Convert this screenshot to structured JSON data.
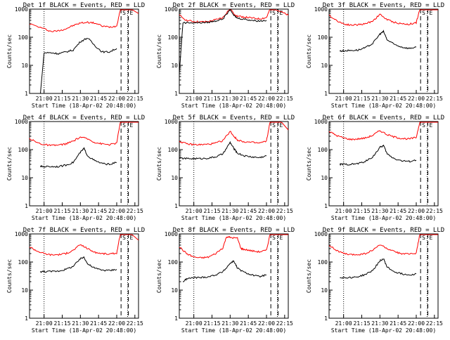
{
  "chart_data": [
    {
      "type": "line",
      "title": "Det 1f BLACK = Events, RED = LLD",
      "xlabel": "Start Time (18-Apr-02 20:48:00)",
      "ylabel": "Counts/sec",
      "yscale": "log",
      "ylim": [
        1,
        1000
      ],
      "x_ticks": [
        "21:00",
        "21:15",
        "21:30",
        "21:45",
        "22:00",
        "22:15"
      ],
      "y_ticks": [
        "1",
        "10",
        "100",
        "1000"
      ],
      "markers": [
        "S",
        "E"
      ],
      "series": [
        {
          "color": "#ff0000",
          "x": [
            20.8,
            21.0,
            21.1,
            21.2,
            21.3,
            21.4,
            21.5,
            21.6,
            21.7,
            21.8,
            21.9,
            22.0,
            22.05,
            22.1,
            22.2,
            22.3
          ],
          "y": [
            300,
            200,
            160,
            170,
            200,
            260,
            320,
            340,
            320,
            250,
            230,
            250,
            1000,
            1000,
            1000,
            700
          ]
        },
        {
          "color": "#000000",
          "x": [
            20.95,
            21.0,
            21.1,
            21.2,
            21.3,
            21.4,
            21.5,
            21.6,
            21.7,
            21.8,
            21.9,
            22.0
          ],
          "y": [
            1,
            28,
            28,
            26,
            30,
            35,
            70,
            95,
            50,
            30,
            30,
            40
          ]
        }
      ]
    },
    {
      "type": "line",
      "title": "Det 2f BLACK = Events, RED = LLD",
      "xlabel": "Start Time (18-Apr-02 20:48:00)",
      "ylabel": "Counts/sec",
      "yscale": "log",
      "ylim": [
        1,
        1000
      ],
      "x_ticks": [
        "21:00",
        "21:15",
        "21:30",
        "21:45",
        "22:00",
        "22:15"
      ],
      "y_ticks": [
        "1",
        "10",
        "100",
        "1000"
      ],
      "markers": [
        "S",
        "E"
      ],
      "series": [
        {
          "color": "#ff0000",
          "x": [
            20.8,
            20.9,
            21.0,
            21.1,
            21.2,
            21.3,
            21.4,
            21.5,
            21.55,
            21.6,
            21.7,
            21.8,
            21.9,
            22.0,
            22.05,
            22.1,
            22.2,
            22.3
          ],
          "y": [
            600,
            400,
            360,
            350,
            360,
            420,
            500,
            1100,
            700,
            560,
            520,
            480,
            450,
            500,
            1000,
            1000,
            800,
            600
          ]
        },
        {
          "color": "#000000",
          "x": [
            20.8,
            20.85,
            21.0,
            21.1,
            21.2,
            21.3,
            21.4,
            21.5,
            21.55,
            21.6,
            21.7,
            21.8,
            21.9,
            22.0
          ],
          "y": [
            5,
            330,
            330,
            330,
            340,
            380,
            450,
            950,
            600,
            480,
            440,
            400,
            380,
            400
          ]
        }
      ]
    },
    {
      "type": "line",
      "title": "Det 3f BLACK = Events, RED = LLD",
      "xlabel": "Start Time (18-Apr-02 20:48:00)",
      "ylabel": "Counts/sec",
      "yscale": "log",
      "ylim": [
        1,
        1000
      ],
      "x_ticks": [
        "21:00",
        "21:15",
        "21:30",
        "21:45",
        "22:00",
        "22:15"
      ],
      "y_ticks": [
        "1",
        "10",
        "100",
        "1000"
      ],
      "markers": [
        "S",
        "E"
      ],
      "series": [
        {
          "color": "#ff0000",
          "x": [
            20.8,
            20.9,
            21.0,
            21.1,
            21.2,
            21.3,
            21.4,
            21.5,
            21.6,
            21.7,
            21.8,
            21.9,
            22.0,
            22.05,
            22.1,
            22.2,
            22.3
          ],
          "y": [
            600,
            400,
            300,
            270,
            280,
            300,
            380,
            650,
            420,
            340,
            300,
            290,
            330,
            1000,
            1000,
            1000,
            1000
          ]
        },
        {
          "color": "#000000",
          "x": [
            20.95,
            21.0,
            21.1,
            21.2,
            21.3,
            21.4,
            21.5,
            21.55,
            21.6,
            21.7,
            21.8,
            21.9,
            22.0
          ],
          "y": [
            32,
            33,
            34,
            35,
            42,
            60,
            130,
            160,
            80,
            55,
            45,
            40,
            45
          ]
        }
      ]
    },
    {
      "type": "line",
      "title": "Det 4f BLACK = Events, RED = LLD",
      "xlabel": "Start Time (18-Apr-02 20:48:00)",
      "ylabel": "Counts/sec",
      "yscale": "log",
      "ylim": [
        1,
        1000
      ],
      "x_ticks": [
        "21:00",
        "21:15",
        "21:30",
        "21:45",
        "22:00",
        "22:15"
      ],
      "y_ticks": [
        "1",
        "10",
        "100",
        "1000"
      ],
      "markers": [
        "S",
        "E"
      ],
      "series": [
        {
          "color": "#ff0000",
          "x": [
            20.8,
            20.9,
            21.0,
            21.1,
            21.2,
            21.3,
            21.4,
            21.5,
            21.6,
            21.7,
            21.8,
            21.9,
            22.0,
            22.05,
            22.1,
            22.2,
            22.3
          ],
          "y": [
            250,
            180,
            150,
            140,
            145,
            160,
            200,
            280,
            240,
            180,
            160,
            150,
            170,
            1000,
            1000,
            1000,
            1000
          ]
        },
        {
          "color": "#000000",
          "x": [
            20.95,
            21.0,
            21.1,
            21.2,
            21.3,
            21.4,
            21.5,
            21.55,
            21.6,
            21.7,
            21.8,
            21.9,
            22.0
          ],
          "y": [
            25,
            25,
            25,
            25,
            28,
            35,
            80,
            110,
            60,
            40,
            32,
            30,
            35
          ]
        }
      ]
    },
    {
      "type": "line",
      "title": "Det 5f BLACK = Events, RED = LLD",
      "xlabel": "Start Time (18-Apr-02 20:48:00)",
      "ylabel": "Counts/sec",
      "yscale": "log",
      "ylim": [
        1,
        1000
      ],
      "x_ticks": [
        "21:00",
        "21:15",
        "21:30",
        "21:45",
        "22:00",
        "22:15"
      ],
      "y_ticks": [
        "1",
        "10",
        "100",
        "1000"
      ],
      "markers": [
        "S",
        "E"
      ],
      "series": [
        {
          "color": "#ff0000",
          "x": [
            20.8,
            20.9,
            21.0,
            21.1,
            21.2,
            21.3,
            21.4,
            21.5,
            21.55,
            21.6,
            21.7,
            21.8,
            21.9,
            22.0,
            22.05,
            22.1,
            22.2,
            22.3
          ],
          "y": [
            200,
            160,
            150,
            150,
            155,
            170,
            210,
            450,
            300,
            220,
            190,
            180,
            170,
            200,
            1000,
            1000,
            1000,
            500
          ]
        },
        {
          "color": "#000000",
          "x": [
            20.8,
            20.9,
            21.0,
            21.1,
            21.2,
            21.3,
            21.4,
            21.5,
            21.55,
            21.6,
            21.7,
            21.8,
            21.9,
            22.0
          ],
          "y": [
            50,
            48,
            48,
            48,
            50,
            55,
            70,
            180,
            110,
            75,
            60,
            55,
            52,
            60
          ]
        }
      ]
    },
    {
      "type": "line",
      "title": "Det 6f BLACK = Events, RED = LLD",
      "xlabel": "Start Time (18-Apr-02 20:48:00)",
      "ylabel": "Counts/sec",
      "yscale": "log",
      "ylim": [
        1,
        1000
      ],
      "x_ticks": [
        "21:00",
        "21:15",
        "21:30",
        "21:45",
        "22:00",
        "22:15"
      ],
      "y_ticks": [
        "1",
        "10",
        "100",
        "1000"
      ],
      "markers": [
        "S",
        "E"
      ],
      "series": [
        {
          "color": "#ff0000",
          "x": [
            20.8,
            20.9,
            21.0,
            21.1,
            21.2,
            21.3,
            21.4,
            21.5,
            21.6,
            21.7,
            21.8,
            21.9,
            22.0,
            22.05,
            22.1,
            22.2,
            22.3
          ],
          "y": [
            450,
            320,
            260,
            230,
            240,
            260,
            320,
            480,
            340,
            280,
            250,
            240,
            270,
            1000,
            1000,
            1000,
            1000
          ]
        },
        {
          "color": "#000000",
          "x": [
            20.95,
            21.0,
            21.1,
            21.2,
            21.3,
            21.4,
            21.5,
            21.55,
            21.6,
            21.7,
            21.8,
            21.9,
            22.0
          ],
          "y": [
            30,
            30,
            30,
            32,
            38,
            55,
            120,
            140,
            70,
            48,
            40,
            38,
            42
          ]
        }
      ]
    },
    {
      "type": "line",
      "title": "Det 7f BLACK = Events, RED = LLD",
      "xlabel": "Start Time (18-Apr-02 20:48:00)",
      "ylabel": "Counts/sec",
      "yscale": "log",
      "ylim": [
        1,
        1000
      ],
      "x_ticks": [
        "21:00",
        "21:15",
        "21:30",
        "21:45",
        "22:00",
        "22:15"
      ],
      "y_ticks": [
        "1",
        "10",
        "100",
        "1000"
      ],
      "markers": [
        "S",
        "E"
      ],
      "series": [
        {
          "color": "#ff0000",
          "x": [
            20.8,
            20.9,
            21.0,
            21.1,
            21.2,
            21.3,
            21.4,
            21.5,
            21.6,
            21.7,
            21.8,
            21.9,
            22.0,
            22.05,
            22.1,
            22.2,
            22.3
          ],
          "y": [
            350,
            250,
            200,
            180,
            185,
            200,
            260,
            420,
            300,
            220,
            200,
            190,
            210,
            1000,
            1000,
            1000,
            600
          ]
        },
        {
          "color": "#000000",
          "x": [
            20.95,
            21.0,
            21.1,
            21.2,
            21.3,
            21.4,
            21.5,
            21.55,
            21.6,
            21.7,
            21.8,
            21.9,
            22.0
          ],
          "y": [
            45,
            46,
            46,
            48,
            55,
            70,
            130,
            150,
            85,
            60,
            52,
            50,
            55
          ]
        }
      ]
    },
    {
      "type": "line",
      "title": "Det 8f BLACK = Events, RED = LLD",
      "xlabel": "Start Time (18-Apr-02 20:48:00)",
      "ylabel": "Counts/sec",
      "yscale": "log",
      "ylim": [
        1,
        1000
      ],
      "x_ticks": [
        "21:00",
        "21:15",
        "21:30",
        "21:45",
        "22:00",
        "22:15"
      ],
      "y_ticks": [
        "1",
        "10",
        "100",
        "1000"
      ],
      "markers": [
        "S",
        "E"
      ],
      "series": [
        {
          "color": "#ff0000",
          "x": [
            20.8,
            20.9,
            21.0,
            21.1,
            21.2,
            21.3,
            21.4,
            21.45,
            21.5,
            21.6,
            21.65,
            21.7,
            21.8,
            21.9,
            22.0,
            22.05,
            22.1,
            22.2,
            22.3
          ],
          "y": [
            350,
            200,
            150,
            140,
            150,
            200,
            320,
            800,
            750,
            700,
            300,
            280,
            250,
            230,
            260,
            1000,
            1000,
            1000,
            1000
          ]
        },
        {
          "color": "#000000",
          "x": [
            20.85,
            20.9,
            21.0,
            21.1,
            21.2,
            21.3,
            21.4,
            21.5,
            21.55,
            21.6,
            21.7,
            21.8,
            21.9,
            22.0
          ],
          "y": [
            20,
            25,
            28,
            28,
            30,
            35,
            45,
            90,
            110,
            60,
            42,
            35,
            30,
            35
          ]
        }
      ]
    },
    {
      "type": "line",
      "title": "Det 9f BLACK = Events, RED = LLD",
      "xlabel": "Start Time (18-Apr-02 20:48:00)",
      "ylabel": "Counts/sec",
      "yscale": "log",
      "ylim": [
        1,
        1000
      ],
      "x_ticks": [
        "21:00",
        "21:15",
        "21:30",
        "21:45",
        "22:00",
        "22:15"
      ],
      "y_ticks": [
        "1",
        "10",
        "100",
        "1000"
      ],
      "markers": [
        "S",
        "E"
      ],
      "series": [
        {
          "color": "#ff0000",
          "x": [
            20.8,
            20.9,
            21.0,
            21.1,
            21.2,
            21.3,
            21.4,
            21.5,
            21.6,
            21.7,
            21.8,
            21.9,
            22.0,
            22.05,
            22.1,
            22.2,
            22.3
          ],
          "y": [
            400,
            260,
            200,
            180,
            185,
            200,
            260,
            420,
            300,
            230,
            200,
            190,
            210,
            1000,
            1000,
            1000,
            1000
          ]
        },
        {
          "color": "#000000",
          "x": [
            20.95,
            21.0,
            21.1,
            21.2,
            21.3,
            21.4,
            21.5,
            21.55,
            21.6,
            21.7,
            21.8,
            21.9,
            22.0
          ],
          "y": [
            28,
            28,
            28,
            30,
            36,
            50,
            110,
            130,
            65,
            45,
            38,
            35,
            38
          ]
        }
      ]
    }
  ]
}
